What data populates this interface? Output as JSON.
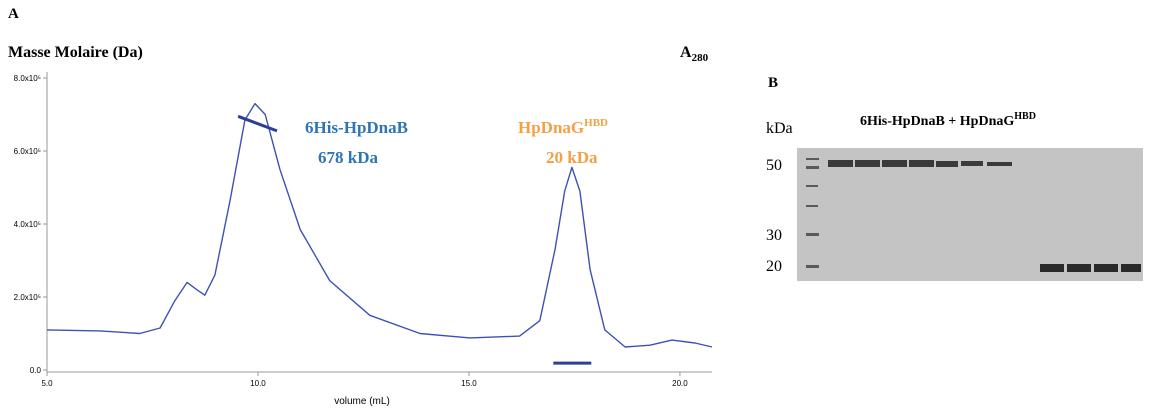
{
  "panel_labels": [
    "A",
    "B"
  ],
  "chart_data": {
    "type": "line",
    "y_axis_title": "Masse Molaire (Da)",
    "y2_axis_title": {
      "text": "A",
      "sub": "280"
    },
    "x_axis_title": "volume (mL)",
    "xlim": [
      5.0,
      20.76
    ],
    "ylim": [
      0,
      800000
    ],
    "xticks": [
      {
        "value": 5,
        "label": "5.0"
      },
      {
        "value": 10,
        "label": "10.0"
      },
      {
        "value": 15,
        "label": "15.0"
      },
      {
        "value": 20,
        "label": "20.0"
      }
    ],
    "yticks": [
      {
        "value": 0,
        "label": "0.0"
      },
      {
        "value": 200000,
        "label": "2.0x10⁵"
      },
      {
        "value": 400000,
        "label": "4.0x10⁵"
      },
      {
        "value": 600000,
        "label": "6.0x10⁵"
      },
      {
        "value": 800000,
        "label": "8.0x10⁵"
      }
    ],
    "series": [
      {
        "color": "#3d52b3",
        "x": [
          5.0,
          6.26,
          7.2,
          7.68,
          8.03,
          8.32,
          8.55,
          8.74,
          8.98,
          9.34,
          9.69,
          9.93,
          10.17,
          10.52,
          11.0,
          11.7,
          12.65,
          13.84,
          15.02,
          16.2,
          16.68,
          17.04,
          17.27,
          17.44,
          17.63,
          17.87,
          18.22,
          18.7,
          19.29,
          19.81,
          20.36,
          20.76
        ],
        "values": [
          110000,
          107000,
          100000,
          115000,
          190000,
          240000,
          220000,
          205000,
          260000,
          465000,
          685000,
          730000,
          700000,
          550000,
          385000,
          245000,
          150000,
          100000,
          88000,
          93000,
          135000,
          330000,
          490000,
          555000,
          490000,
          275000,
          110000,
          63000,
          68000,
          82000,
          74000,
          63000
        ]
      },
      {
        "color": "#2b3f9a",
        "x": [
          9.53,
          10.45,
          10.9,
          17.0,
          17.9
        ],
        "values": [
          695000,
          655000,
          null,
          19000,
          19000
        ]
      }
    ],
    "annotations": [
      {
        "text": "6His-HpDnaB",
        "color": "#2e75b6"
      },
      {
        "text": "678 kDa",
        "color": "#2e75b6"
      },
      {
        "text": "HpDnaG",
        "sup": "HBD",
        "color": "#f4a043"
      },
      {
        "text": "20 kDa",
        "color": "#f4a043"
      }
    ]
  },
  "gel": {
    "unit": "kDa",
    "title": {
      "text": "6His-HpDnaB + HpDnaG",
      "sup": "HBD"
    },
    "markers": [
      50,
      30,
      20
    ]
  }
}
